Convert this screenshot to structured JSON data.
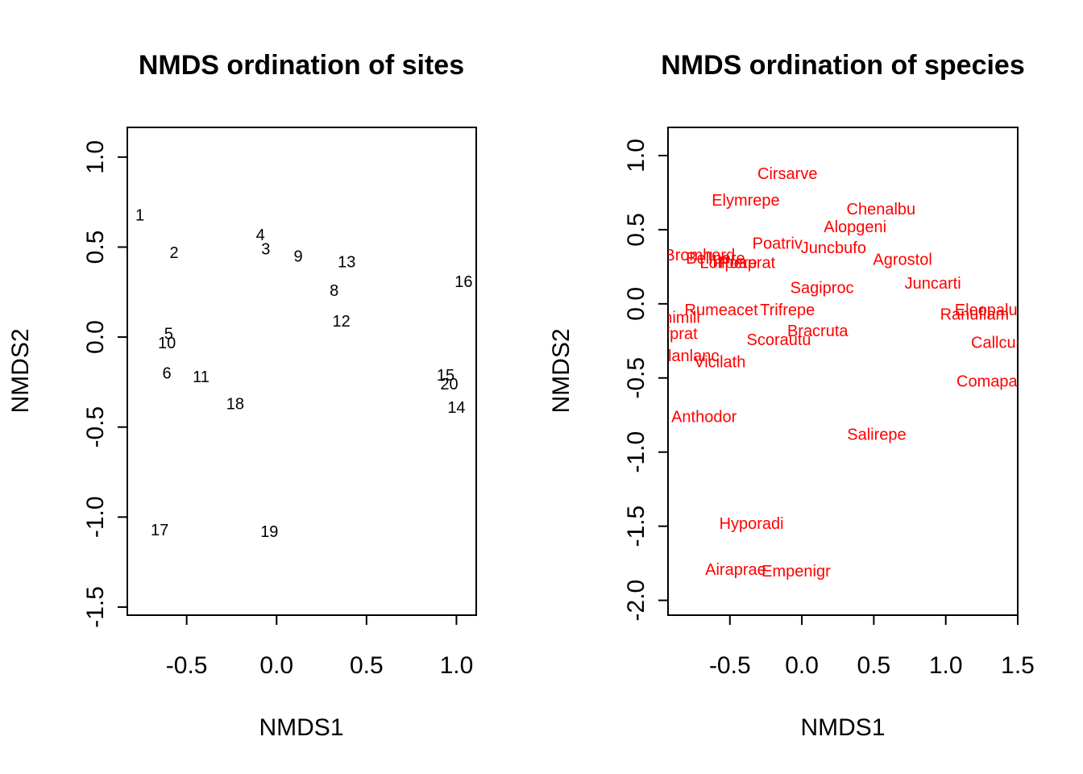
{
  "chart_data": [
    {
      "type": "scatter",
      "title": "NMDS ordination of sites",
      "xlabel": "NMDS1",
      "ylabel": "NMDS2",
      "xlim": [
        -0.83,
        1.11
      ],
      "ylim": [
        -1.545,
        1.165
      ],
      "xticks": [
        -0.5,
        0.0,
        0.5,
        1.0
      ],
      "xtick_labels": [
        "-0.5",
        "0.0",
        "0.5",
        "1.0"
      ],
      "yticks": [
        -1.5,
        -1.0,
        -0.5,
        0.0,
        0.5,
        1.0
      ],
      "ytick_labels": [
        "-1.5",
        "-1.0",
        "-0.5",
        "0.0",
        "0.5",
        "1.0"
      ],
      "grid": false,
      "point_color": "#000000",
      "points": [
        {
          "label": "1",
          "x": -0.76,
          "y": 0.68
        },
        {
          "label": "2",
          "x": -0.57,
          "y": 0.47
        },
        {
          "label": "3",
          "x": -0.06,
          "y": 0.49
        },
        {
          "label": "4",
          "x": -0.09,
          "y": 0.57
        },
        {
          "label": "5",
          "x": -0.6,
          "y": 0.02
        },
        {
          "label": "6",
          "x": -0.61,
          "y": -0.2
        },
        {
          "label": "8",
          "x": 0.32,
          "y": 0.26
        },
        {
          "label": "9",
          "x": 0.12,
          "y": 0.45
        },
        {
          "label": "10",
          "x": -0.61,
          "y": -0.03
        },
        {
          "label": "11",
          "x": -0.42,
          "y": -0.22
        },
        {
          "label": "12",
          "x": 0.36,
          "y": 0.09
        },
        {
          "label": "13",
          "x": 0.39,
          "y": 0.42
        },
        {
          "label": "14",
          "x": 1.0,
          "y": -0.39
        },
        {
          "label": "15",
          "x": 0.94,
          "y": -0.21
        },
        {
          "label": "16",
          "x": 1.04,
          "y": 0.31
        },
        {
          "label": "17",
          "x": -0.65,
          "y": -1.07
        },
        {
          "label": "18",
          "x": -0.23,
          "y": -0.37
        },
        {
          "label": "19",
          "x": -0.04,
          "y": -1.08
        },
        {
          "label": "20",
          "x": 0.96,
          "y": -0.26
        }
      ]
    },
    {
      "type": "scatter",
      "title": "NMDS ordination of species",
      "xlabel": "NMDS1",
      "ylabel": "NMDS2",
      "xlim": [
        -0.93,
        1.5
      ],
      "ylim": [
        -2.1,
        1.19
      ],
      "xticks": [
        -0.5,
        0.0,
        0.5,
        1.0,
        1.5
      ],
      "xtick_labels": [
        "-0.5",
        "0.0",
        "0.5",
        "1.0",
        "1.5"
      ],
      "yticks": [
        -2.0,
        -1.5,
        -1.0,
        -0.5,
        0.0,
        0.5,
        1.0
      ],
      "ytick_labels": [
        "-2.0",
        "-1.5",
        "-1.0",
        "-0.5",
        "0.0",
        "0.5",
        "1.0"
      ],
      "grid": false,
      "point_color": "#ff0000",
      "points": [
        {
          "label": "Cirsarve",
          "x": -0.1,
          "y": 0.88
        },
        {
          "label": "Elymrepe",
          "x": -0.39,
          "y": 0.7
        },
        {
          "label": "Chenalbu",
          "x": 0.55,
          "y": 0.64
        },
        {
          "label": "Alopgeni",
          "x": 0.37,
          "y": 0.52
        },
        {
          "label": "Poatriv",
          "x": -0.17,
          "y": 0.41
        },
        {
          "label": "Juncbufo",
          "x": 0.22,
          "y": 0.38
        },
        {
          "label": "Bromhord",
          "x": -0.71,
          "y": 0.33
        },
        {
          "label": "Bellpere",
          "x": -0.6,
          "y": 0.31
        },
        {
          "label": "Lolipere",
          "x": -0.51,
          "y": 0.28
        },
        {
          "label": "Poaprat",
          "x": -0.38,
          "y": 0.28
        },
        {
          "label": "Agrostol",
          "x": 0.7,
          "y": 0.3
        },
        {
          "label": "Juncarti",
          "x": 0.91,
          "y": 0.14
        },
        {
          "label": "Sagiproc",
          "x": 0.14,
          "y": 0.11
        },
        {
          "label": "Rumeacet",
          "x": -0.56,
          "y": -0.04
        },
        {
          "label": "Trifrepe",
          "x": -0.1,
          "y": -0.04
        },
        {
          "label": "Achimill",
          "x": -0.9,
          "y": -0.09
        },
        {
          "label": "Eleopalu",
          "x": 1.28,
          "y": -0.04
        },
        {
          "label": "Ranuflam",
          "x": 1.2,
          "y": -0.07
        },
        {
          "label": "Trifprat",
          "x": -0.9,
          "y": -0.2
        },
        {
          "label": "Bracruta",
          "x": 0.11,
          "y": -0.18
        },
        {
          "label": "Scorautu",
          "x": -0.16,
          "y": -0.24
        },
        {
          "label": "Callcusp",
          "x": 1.39,
          "y": -0.26
        },
        {
          "label": "Planlanc",
          "x": -0.79,
          "y": -0.35
        },
        {
          "label": "Vicilath",
          "x": -0.57,
          "y": -0.39
        },
        {
          "label": "Comapalu",
          "x": 1.33,
          "y": -0.52
        },
        {
          "label": "Anthodor",
          "x": -0.68,
          "y": -0.76
        },
        {
          "label": "Salirepe",
          "x": 0.52,
          "y": -0.88
        },
        {
          "label": "Hyporadi",
          "x": -0.35,
          "y": -1.48
        },
        {
          "label": "Airaprae",
          "x": -0.46,
          "y": -1.79
        },
        {
          "label": "Empenigr",
          "x": -0.04,
          "y": -1.8
        }
      ]
    }
  ]
}
